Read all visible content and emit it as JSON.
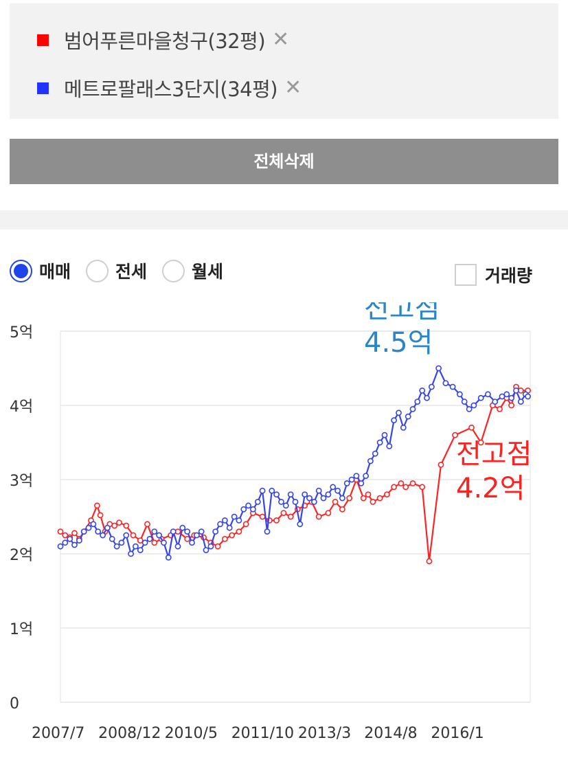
{
  "compare_list": {
    "items": [
      {
        "label": "범어푸른마을청구(32평)",
        "color": "#ff0000"
      },
      {
        "label": "메트로팔래스3단지(34평)",
        "color": "#2233ff"
      }
    ],
    "remove_glyph": "✕"
  },
  "clear_button": {
    "label": "전체삭제"
  },
  "trade_type": {
    "options": [
      {
        "label": "매매",
        "checked": true
      },
      {
        "label": "전세",
        "checked": false
      },
      {
        "label": "월세",
        "checked": false
      }
    ]
  },
  "volume_toggle": {
    "label": "거래량",
    "checked": false
  },
  "chart_data": {
    "type": "line",
    "title": "",
    "xlabel": "",
    "ylabel": "",
    "x_unit": "year",
    "xlim": [
      2007.5,
      2017.5
    ],
    "ylim": [
      0,
      5
    ],
    "y_ticks": [
      {
        "value": 0,
        "label": "0"
      },
      {
        "value": 1,
        "label": "1억"
      },
      {
        "value": 2,
        "label": "2억"
      },
      {
        "value": 3,
        "label": "3억"
      },
      {
        "value": 4,
        "label": "4억"
      },
      {
        "value": 5,
        "label": "5억"
      }
    ],
    "x_ticks": [
      {
        "value": 2007.5,
        "label": "2007/7"
      },
      {
        "value": 2008.92,
        "label": "2008/12"
      },
      {
        "value": 2010.33,
        "label": "2010/5"
      },
      {
        "value": 2011.75,
        "label": "2011/10"
      },
      {
        "value": 2013.17,
        "label": "2013/3"
      },
      {
        "value": 2014.58,
        "label": "2014/8"
      },
      {
        "value": 2016.0,
        "label": "2016/1"
      }
    ],
    "grid": true,
    "legend": "top",
    "series": [
      {
        "name": "범어푸른마을청구(32평)",
        "color": "#ff2222",
        "x": [
          2007.5,
          2007.6,
          2007.7,
          2007.8,
          2007.9,
          2008.0,
          2008.15,
          2008.28,
          2008.35,
          2008.45,
          2008.55,
          2008.65,
          2008.75,
          2008.9,
          2009.05,
          2009.2,
          2009.35,
          2009.5,
          2009.65,
          2009.85,
          2010.0,
          2010.2,
          2010.35,
          2010.55,
          2010.7,
          2010.85,
          2011.0,
          2011.15,
          2011.3,
          2011.45,
          2011.6,
          2011.8,
          2011.95,
          2012.1,
          2012.25,
          2012.4,
          2012.55,
          2012.7,
          2012.85,
          2013.0,
          2013.2,
          2013.35,
          2013.5,
          2013.65,
          2013.8,
          2013.95,
          2014.05,
          2014.15,
          2014.3,
          2014.45,
          2014.6,
          2014.75,
          2014.85,
          2015.0,
          2015.2,
          2015.35,
          2015.6,
          2015.9,
          2016.25,
          2016.45,
          2016.7,
          2016.85,
          2017.0,
          2017.1,
          2017.2,
          2017.3,
          2017.45
        ],
        "y": [
          2.3,
          2.25,
          2.22,
          2.28,
          2.2,
          2.3,
          2.45,
          2.65,
          2.52,
          2.3,
          2.4,
          2.38,
          2.42,
          2.38,
          2.25,
          2.18,
          2.4,
          2.15,
          2.2,
          2.25,
          2.3,
          2.2,
          2.25,
          2.22,
          2.15,
          2.1,
          2.2,
          2.25,
          2.3,
          2.4,
          2.55,
          2.5,
          2.45,
          2.45,
          2.55,
          2.5,
          2.6,
          2.65,
          2.7,
          2.5,
          2.55,
          2.7,
          2.6,
          2.75,
          3.0,
          2.75,
          2.8,
          2.7,
          2.75,
          2.8,
          2.9,
          2.95,
          2.9,
          2.95,
          2.9,
          1.9,
          3.2,
          3.6,
          3.7,
          3.5,
          4.0,
          3.95,
          4.1,
          4.0,
          4.25,
          4.2,
          4.2
        ]
      },
      {
        "name": "메트로팔래스3단지(34평)",
        "color": "#3344ee",
        "x": [
          2007.5,
          2007.6,
          2007.7,
          2007.8,
          2007.9,
          2008.0,
          2008.1,
          2008.2,
          2008.3,
          2008.4,
          2008.5,
          2008.6,
          2008.7,
          2008.8,
          2008.9,
          2009.0,
          2009.1,
          2009.2,
          2009.3,
          2009.4,
          2009.5,
          2009.6,
          2009.7,
          2009.8,
          2009.9,
          2010.0,
          2010.1,
          2010.2,
          2010.3,
          2010.4,
          2010.5,
          2010.6,
          2010.7,
          2010.8,
          2010.9,
          2011.0,
          2011.1,
          2011.2,
          2011.3,
          2011.4,
          2011.5,
          2011.6,
          2011.7,
          2011.8,
          2011.9,
          2012.0,
          2012.1,
          2012.2,
          2012.3,
          2012.4,
          2012.5,
          2012.6,
          2012.7,
          2012.8,
          2012.9,
          2013.0,
          2013.1,
          2013.2,
          2013.3,
          2013.4,
          2013.5,
          2013.6,
          2013.7,
          2013.8,
          2013.9,
          2014.0,
          2014.1,
          2014.2,
          2014.3,
          2014.4,
          2014.5,
          2014.6,
          2014.7,
          2014.8,
          2014.9,
          2015.0,
          2015.1,
          2015.2,
          2015.3,
          2015.4,
          2015.55,
          2015.7,
          2015.85,
          2016.0,
          2016.1,
          2016.2,
          2016.3,
          2016.45,
          2016.6,
          2016.75,
          2016.9,
          2017.0,
          2017.1,
          2017.2,
          2017.3,
          2017.4,
          2017.45
        ],
        "y": [
          2.1,
          2.15,
          2.2,
          2.12,
          2.18,
          2.3,
          2.35,
          2.4,
          2.3,
          2.25,
          2.35,
          2.2,
          2.1,
          2.15,
          2.25,
          2.0,
          2.1,
          2.05,
          2.15,
          2.2,
          2.3,
          2.25,
          2.15,
          1.95,
          2.3,
          2.1,
          2.35,
          2.3,
          2.15,
          2.25,
          2.3,
          2.05,
          2.1,
          2.3,
          2.4,
          2.45,
          2.35,
          2.5,
          2.45,
          2.6,
          2.65,
          2.6,
          2.7,
          2.85,
          2.3,
          2.85,
          2.8,
          2.7,
          2.65,
          2.8,
          2.7,
          2.4,
          2.8,
          2.75,
          2.7,
          2.85,
          2.75,
          2.8,
          2.9,
          2.85,
          2.75,
          2.95,
          3.0,
          3.05,
          2.95,
          3.05,
          3.25,
          3.35,
          3.5,
          3.6,
          3.45,
          3.8,
          3.9,
          3.7,
          3.85,
          3.95,
          4.05,
          4.2,
          4.1,
          4.25,
          4.5,
          4.3,
          4.25,
          4.15,
          4.05,
          3.95,
          4.0,
          4.1,
          4.15,
          4.05,
          4.12,
          4.15,
          4.1,
          4.2,
          4.05,
          4.15,
          4.12
        ]
      }
    ],
    "annotations": [
      {
        "series": 1,
        "lines": [
          "전고점",
          "4.5억"
        ],
        "color": "#2a86c9"
      },
      {
        "series": 0,
        "lines": [
          "전고점",
          "4.2억"
        ],
        "color": "#ff2020"
      }
    ]
  }
}
